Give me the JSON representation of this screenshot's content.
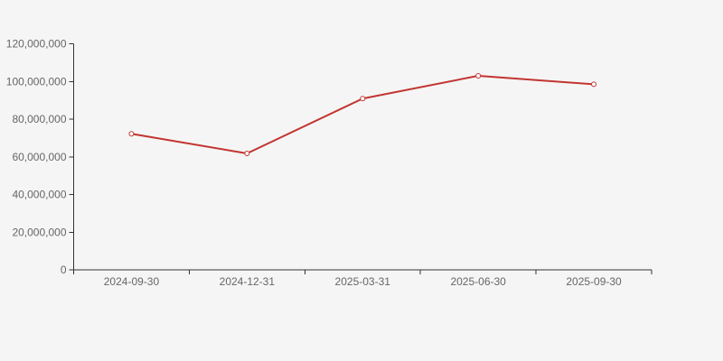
{
  "background_color": "#f5f5f5",
  "chart_data": {
    "type": "line",
    "title": "",
    "xlabel": "",
    "ylabel": "",
    "categories": [
      "2024-09-30",
      "2024-12-31",
      "2025-03-31",
      "2025-06-30",
      "2025-09-30"
    ],
    "series": [
      {
        "name": "value",
        "values": [
          72200000,
          61800000,
          90900000,
          103000000,
          98500000
        ]
      }
    ],
    "ylim": [
      0,
      120000000
    ],
    "y_tick_interval": 20000000,
    "y_tick_labels": [
      "0",
      "20,000,000",
      "40,000,000",
      "60,000,000",
      "80,000,000",
      "100,000,000",
      "120,000,000"
    ],
    "grid": false,
    "legend": false,
    "line_color": "#c23531",
    "marker": "hollow-circle",
    "marker_fill": "#ffffff",
    "axis_color": "#333333",
    "label_color": "#666666"
  }
}
